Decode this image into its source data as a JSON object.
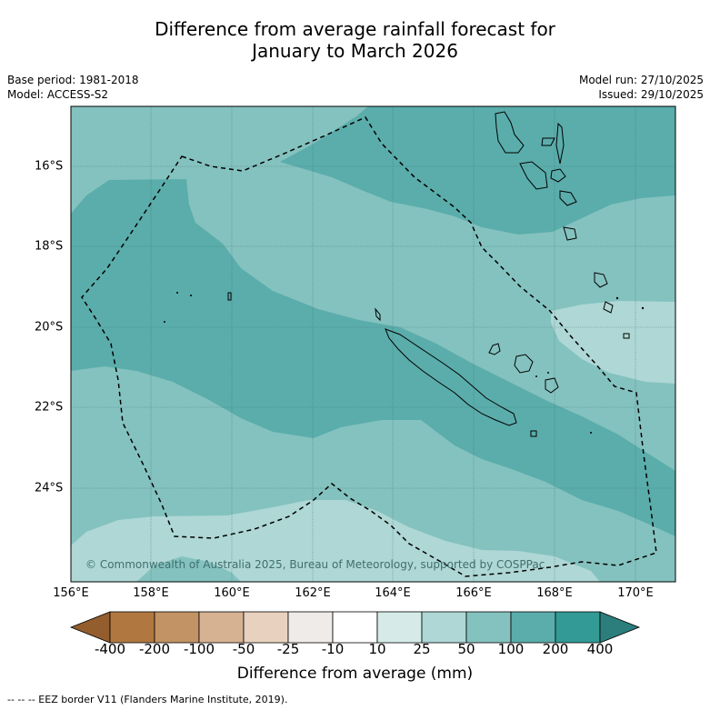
{
  "title": {
    "line1": "Difference from average rainfall forecast for",
    "line2": "January to March 2026"
  },
  "meta": {
    "base_period": "Base period: 1981-2018",
    "model": "Model: ACCESS-S2",
    "model_run": "Model run: 27/10/2025",
    "issued": "Issued: 29/10/2025"
  },
  "map": {
    "longitude_labels": [
      "156°E",
      "158°E",
      "160°E",
      "162°E",
      "164°E",
      "166°E",
      "168°E",
      "170°E"
    ],
    "latitude_labels": [
      "16°S",
      "18°S",
      "20°S",
      "22°S",
      "24°S"
    ],
    "copyright": "© Commonwealth of Australia 2025, Bureau of Meteorology, supported by COSPPac",
    "colors": {
      "band_10_25": "#d6ebe8",
      "band_25_50": "#aed7d5",
      "band_50_100": "#84c2bf",
      "band_100_200": "#5aadab",
      "band_200_400": "#339a96",
      "ocean_base": "#84c2bf"
    }
  },
  "colorbar": {
    "tick_labels": [
      "-400",
      "-200",
      "-100",
      "-50",
      "-25",
      "-10",
      "10",
      "25",
      "50",
      "100",
      "200",
      "400"
    ],
    "colors": [
      "#935d2e",
      "#b07840",
      "#c29365",
      "#d6b292",
      "#e8d2bf",
      "#efebe8",
      "#ffffff",
      "#d6ebe8",
      "#aed7d5",
      "#84c2bf",
      "#5aadab",
      "#339a96",
      "#2b7e7b"
    ],
    "label": "Difference from average (mm)"
  },
  "footer": "--  --  -- EEZ border V11 (Flanders Marine Institute, 2019)."
}
